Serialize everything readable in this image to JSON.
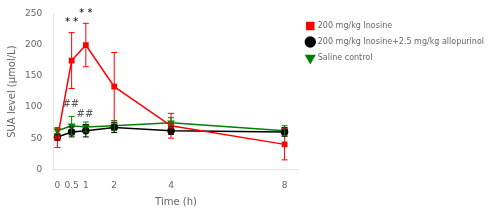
{
  "chart_data": {
    "type": "line",
    "x": [
      0,
      0.5,
      1,
      2,
      4,
      8
    ],
    "xlabel": "Time (h)",
    "ylabel": "SUA level (µmol/L)",
    "xlim": [
      -0.15,
      8.5
    ],
    "xticks": [
      0,
      0.5,
      1,
      2,
      4,
      8
    ],
    "ylim": [
      0,
      250
    ],
    "yticks": [
      0,
      50,
      100,
      150,
      200,
      250
    ],
    "grid": false,
    "legend": "upper right",
    "series": [
      {
        "name": "200 mg/kg Inosine",
        "color": "#FF0000",
        "marker": "square",
        "values": [
          50,
          175,
          200,
          133,
          70,
          40
        ],
        "errors": [
          15,
          45,
          35,
          55,
          20,
          25
        ]
      },
      {
        "name": "200 mg/kg Inosine+2.5 mg/kg allopurinol",
        "color": "#000000",
        "marker": "circle",
        "values": [
          52,
          60,
          62,
          67,
          62,
          60
        ],
        "errors": [
          5,
          8,
          10,
          8,
          6,
          7
        ]
      },
      {
        "name": "Saline control",
        "color": "#008000",
        "marker": "triangle_down",
        "values": [
          62,
          70,
          68,
          70,
          75,
          62
        ],
        "errors": [
          5,
          15,
          8,
          8,
          8,
          8
        ]
      }
    ],
    "annotations": [
      {
        "text": "* *",
        "x": 0.5,
        "y": 228,
        "color": "#000000"
      },
      {
        "text": "* *",
        "x": 1.0,
        "y": 243,
        "color": "#000000"
      },
      {
        "text": "##",
        "x": 0.47,
        "y": 97,
        "color": "#555555"
      },
      {
        "text": "##",
        "x": 0.97,
        "y": 80,
        "color": "#555555"
      }
    ]
  }
}
